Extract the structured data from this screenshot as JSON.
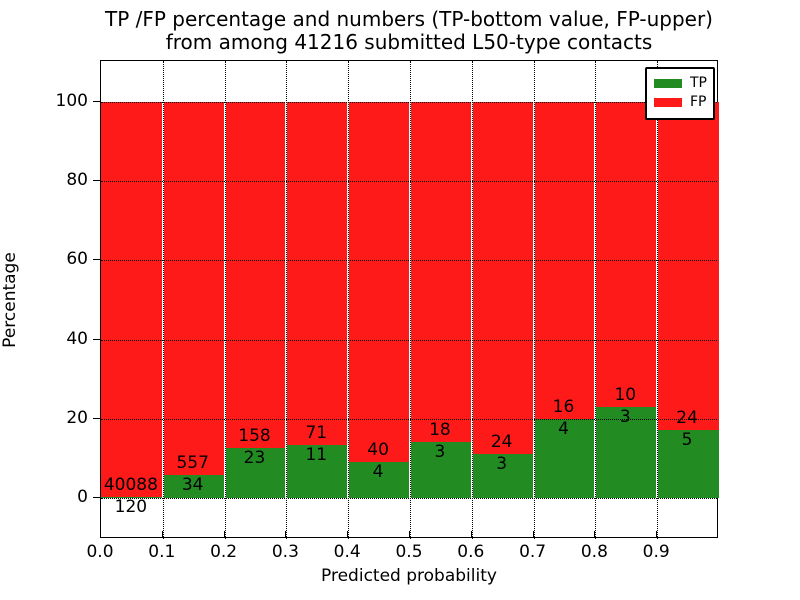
{
  "title": {
    "line1": "TP /FP percentage and numbers (TP-bottom value, FP-upper)",
    "line2": "from among 41216 submitted L50-type contacts"
  },
  "chart_data": {
    "type": "bar",
    "stacked": true,
    "percentage_normalized": true,
    "title": "TP /FP percentage and numbers (TP-bottom value, FP-upper)\nfrom among 41216 submitted L50-type contacts",
    "total_contacts": 41216,
    "xlabel": "Predicted probability",
    "ylabel": "Percentage",
    "bin_start": [
      0.0,
      0.1,
      0.2,
      0.3,
      0.4,
      0.5,
      0.6,
      0.7,
      0.8,
      0.9
    ],
    "bin_width": 0.1,
    "series": [
      {
        "name": "TP",
        "color": "#228B22",
        "counts": [
          120,
          34,
          23,
          11,
          4,
          3,
          3,
          4,
          3,
          5
        ],
        "percent": [
          0.3,
          5.75,
          12.71,
          13.41,
          9.09,
          14.29,
          11.11,
          20.0,
          23.08,
          17.24
        ]
      },
      {
        "name": "FP",
        "color": "#FF1A1A",
        "counts": [
          40088,
          557,
          158,
          71,
          40,
          18,
          24,
          16,
          10,
          24
        ],
        "percent": [
          99.7,
          94.25,
          87.29,
          86.59,
          90.91,
          85.71,
          88.89,
          80.0,
          76.92,
          82.76
        ]
      }
    ],
    "xticks": [
      "0.0",
      "0.1",
      "0.2",
      "0.3",
      "0.4",
      "0.5",
      "0.6",
      "0.7",
      "0.8",
      "0.9"
    ],
    "yticks": [
      0,
      20,
      40,
      60,
      80,
      100
    ],
    "xlim": [
      0.0,
      1.0
    ],
    "ylim": [
      -10.3,
      110.3
    ],
    "grid": true,
    "grid_style": "dotted",
    "legend": {
      "position": "upper right",
      "entries": [
        {
          "label": "TP",
          "color": "#228B22"
        },
        {
          "label": "FP",
          "color": "#FF1A1A"
        }
      ]
    }
  }
}
